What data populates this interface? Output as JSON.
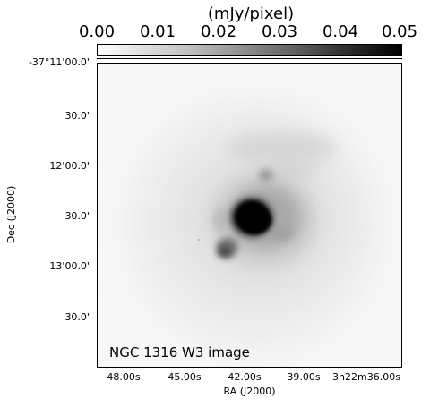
{
  "colorbar": {
    "unit_label": "(mJy/pixel)",
    "tick_labels": [
      "0.00",
      "0.01",
      "0.02",
      "0.03",
      "0.04",
      "0.05"
    ]
  },
  "axes": {
    "x_label": "RA (J2000)",
    "y_label": "Dec (J2000)",
    "x_tick_labels": [
      "48.00s",
      "45.00s",
      "42.00s",
      "39.00s",
      "3h22m36.00s"
    ],
    "y_tick_labels": [
      "-37°11'00.0\"",
      "30.0\"",
      "12'00.0\"",
      "30.0\"",
      "13'00.0\"",
      "30.0\""
    ]
  },
  "image": {
    "caption": "NGC 1316 W3 image"
  }
}
